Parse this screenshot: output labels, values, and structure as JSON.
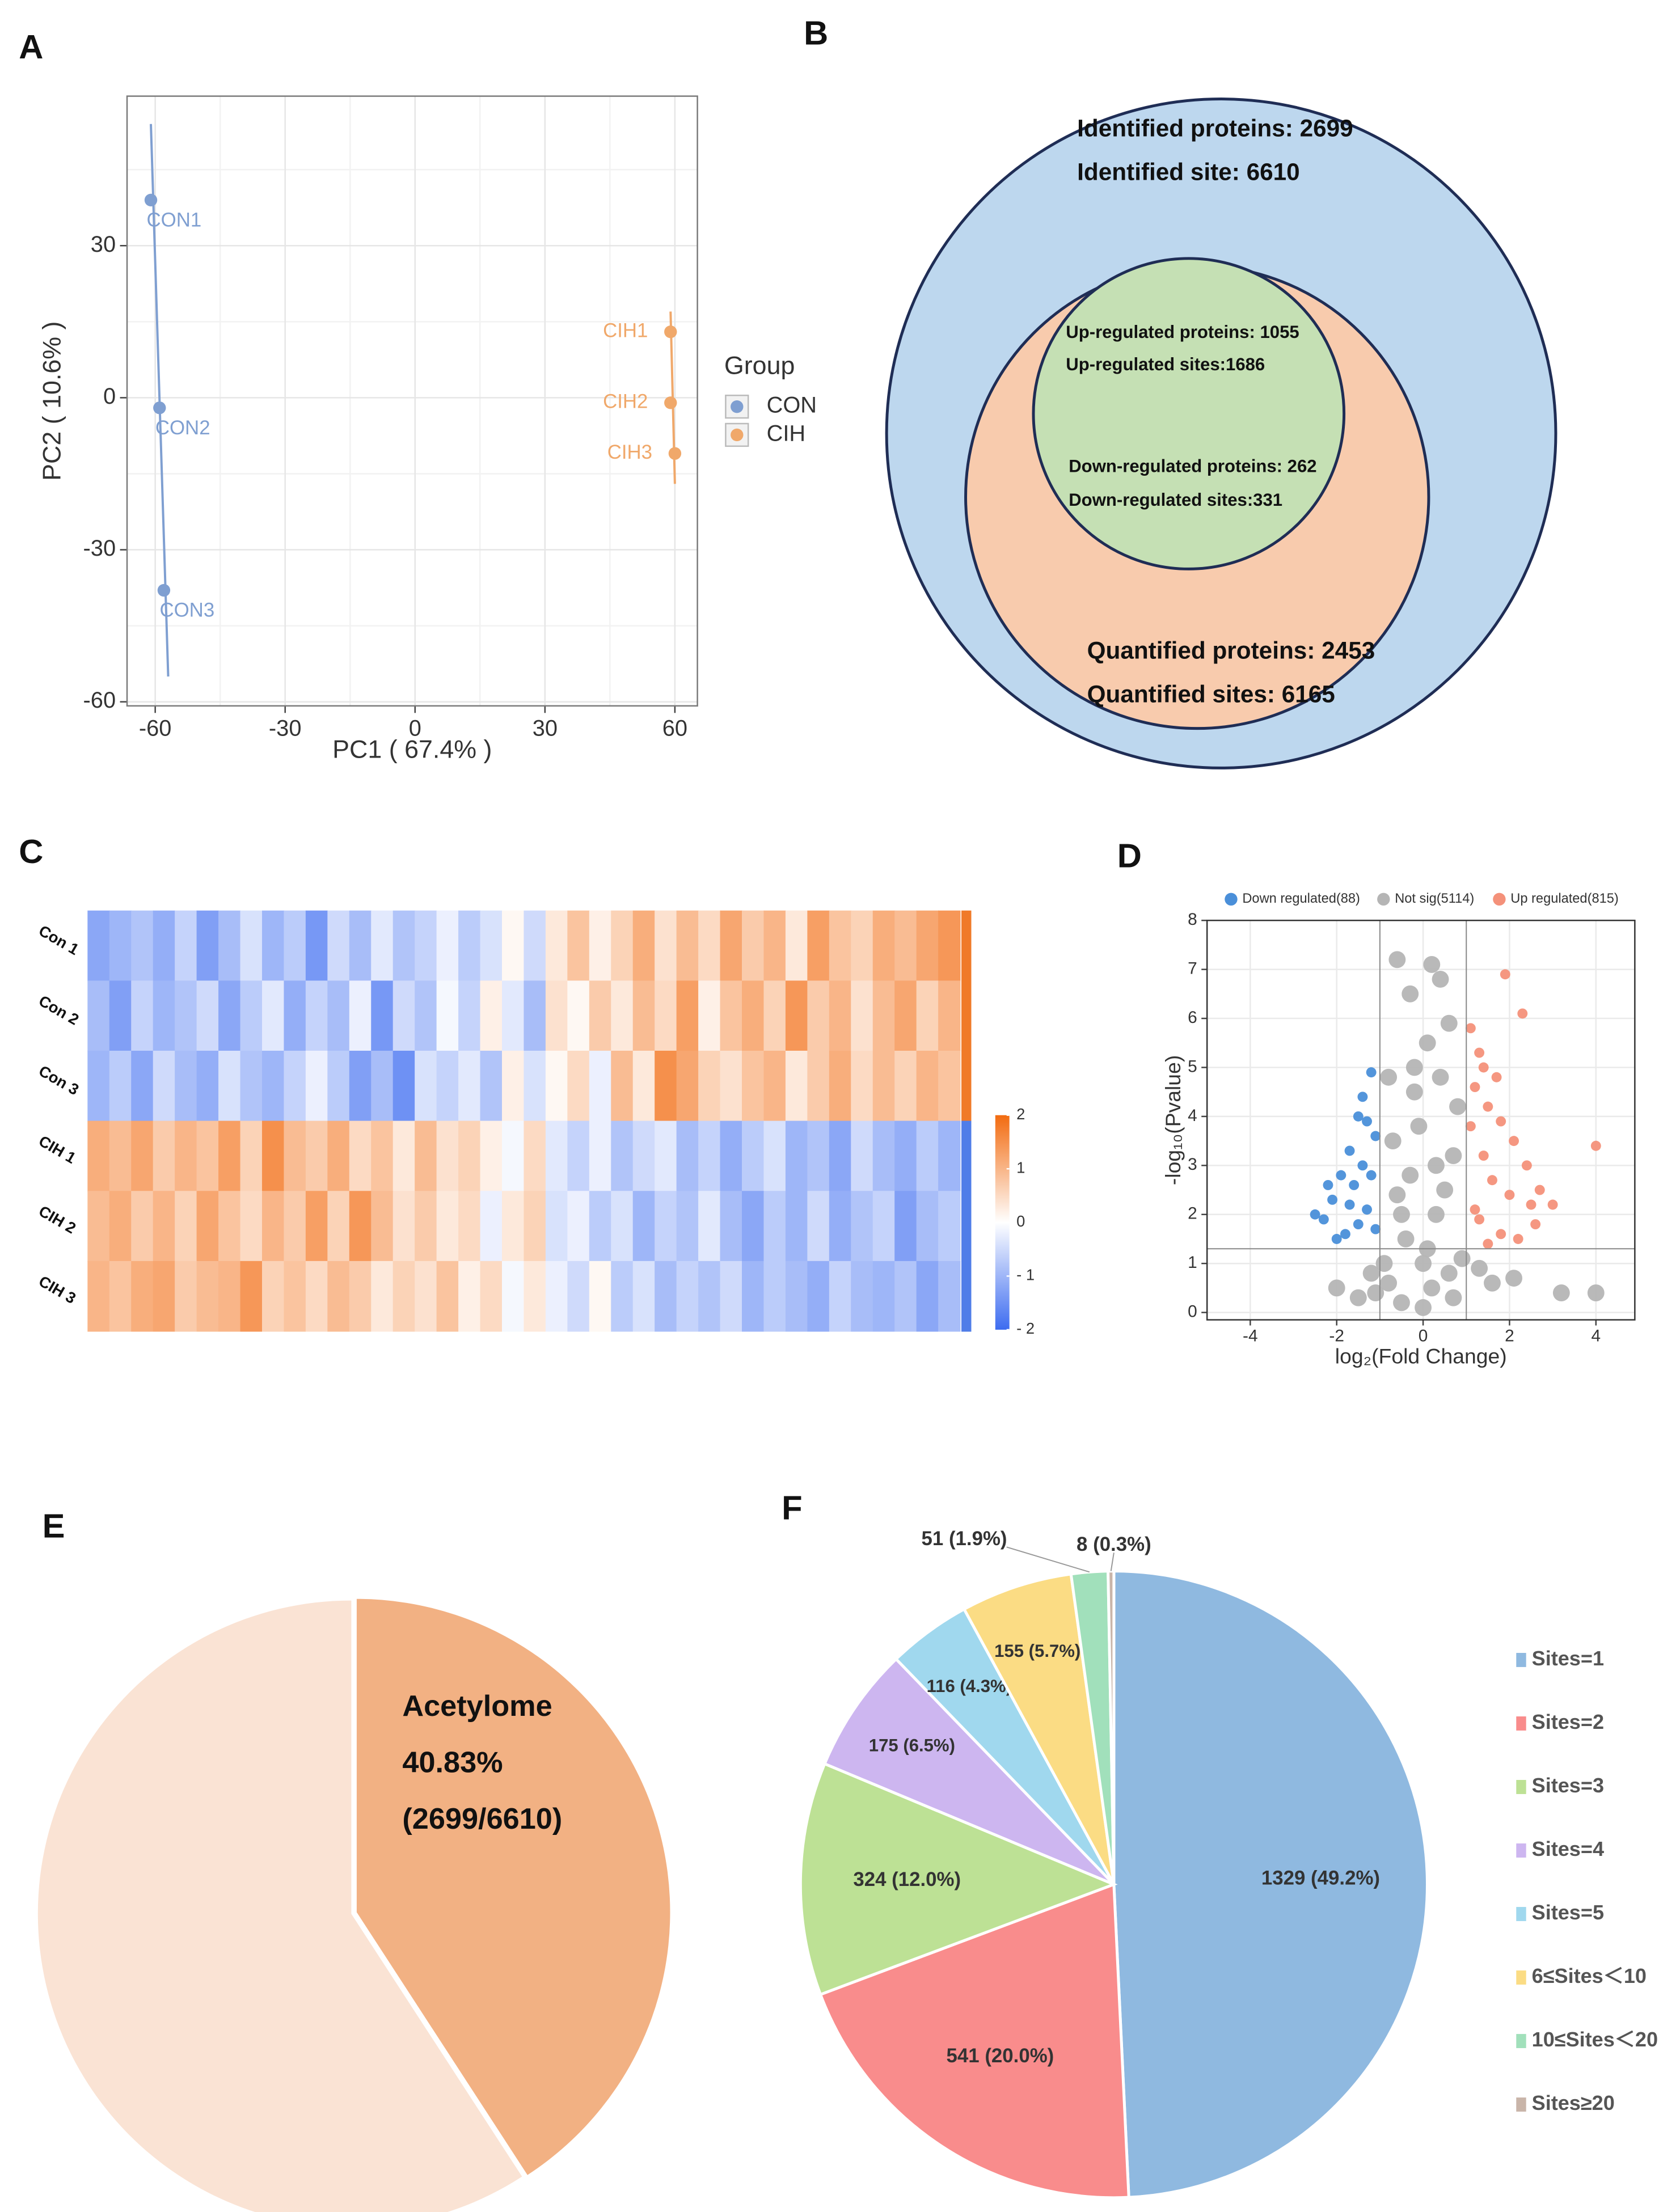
{
  "chart_data": [
    {
      "panel": "A",
      "type": "scatter",
      "xlabel": "PC1 ( 67.4% )",
      "ylabel": "PC2 ( 10.6% )",
      "xlim": [
        -66.5,
        65.2
      ],
      "ylim": [
        -60.8,
        59.5
      ],
      "xticks": [
        -60,
        -30,
        0,
        30,
        60
      ],
      "yticks": [
        -60,
        -30,
        0,
        30
      ],
      "xminor": [
        -45,
        -15,
        15,
        45
      ],
      "yminor": [
        -45,
        -15,
        15,
        45
      ],
      "grid": true,
      "legend_title": "Group",
      "series": [
        {
          "name": "CON",
          "color": "#7f9fd1",
          "labels": [
            "CON1",
            "CON2",
            "CON3"
          ],
          "x": [
            -61,
            -59,
            -58
          ],
          "values": [
            39,
            -2,
            -38
          ],
          "line": {
            "x": [
              -61,
              -57
            ],
            "y": [
              54,
              -55
            ]
          }
        },
        {
          "name": "CIH",
          "color": "#f0a86a",
          "labels": [
            "CIH1",
            "CIH2",
            "CIH3"
          ],
          "x": [
            59,
            59,
            60
          ],
          "values": [
            13,
            -1,
            -11
          ],
          "line": {
            "x": [
              59,
              60
            ],
            "y": [
              17,
              -17
            ]
          }
        }
      ]
    },
    {
      "panel": "B",
      "type": "venn",
      "groups": [
        {
          "color": "#bdd7ee",
          "lines": [
            "Identified proteins: 2699",
            "Identified site: 6610"
          ]
        },
        {
          "color": "#f8cbad",
          "lines": [
            "Quantified proteins: 2453",
            "Quantified sites: 6165"
          ]
        },
        {
          "color": "#c5e0b4",
          "lines": [
            "Up-regulated proteins: 1055",
            "Up-regulated sites:1686",
            "Down-regulated proteins: 262",
            "Down-regulated sites:331"
          ]
        }
      ]
    },
    {
      "panel": "C",
      "type": "heatmap",
      "rows": [
        "Con 1",
        "Con 2",
        "Con 3",
        "CIH 1",
        "CIH 2",
        "CIH 3"
      ],
      "row_colors": [
        "#f07a28",
        "#f07a28",
        "#f07a28",
        "#4f7de8",
        "#4f7de8",
        "#4f7de8"
      ],
      "colors": [
        "#3d6cf0",
        "#ffffff",
        "#f26b10"
      ],
      "clim": [
        -2,
        2
      ],
      "ticks": [
        2,
        1,
        0,
        {
          "value": -1,
          "label": "- 1"
        },
        {
          "value": -2,
          "label": "- 2"
        }
      ],
      "values": [
        [
          -1.2,
          -1.0,
          -0.8,
          -1.1,
          -0.6,
          -1.3,
          -0.9,
          -0.4,
          -1.0,
          -0.7,
          -1.4,
          -0.5,
          -0.9,
          -0.3,
          -0.8,
          -0.6,
          -0.2,
          -0.7,
          -0.4,
          0.1,
          -0.5,
          0.3,
          0.8,
          0.2,
          0.6,
          1.1,
          0.4,
          0.9,
          0.5,
          1.2,
          0.7,
          1.0,
          0.3,
          1.3,
          0.8,
          0.6,
          1.1,
          0.9,
          1.2,
          1.4
        ],
        [
          -0.9,
          -1.3,
          -0.6,
          -1.0,
          -0.8,
          -0.5,
          -1.2,
          -0.7,
          -0.3,
          -1.1,
          -0.6,
          -0.9,
          -0.2,
          -1.4,
          -0.5,
          -0.8,
          -0.1,
          -0.6,
          0.2,
          -0.3,
          -0.9,
          0.4,
          0.1,
          0.7,
          0.3,
          0.9,
          0.5,
          1.3,
          0.2,
          0.8,
          1.1,
          0.6,
          1.4,
          0.7,
          1.0,
          0.4,
          0.9,
          1.2,
          0.6,
          1.0
        ],
        [
          -1.0,
          -0.7,
          -1.2,
          -0.5,
          -0.9,
          -1.1,
          -0.4,
          -0.8,
          -1.0,
          -0.6,
          -0.2,
          -0.7,
          -1.3,
          -0.9,
          -1.5,
          -0.4,
          -0.6,
          -0.3,
          -0.8,
          0.2,
          -0.4,
          0.1,
          0.5,
          -0.2,
          0.9,
          0.3,
          1.5,
          1.2,
          0.6,
          0.4,
          0.8,
          1.0,
          0.3,
          0.7,
          1.1,
          0.5,
          0.9,
          0.6,
          1.0,
          0.8
        ],
        [
          1.1,
          0.9,
          1.2,
          0.7,
          1.0,
          0.8,
          1.3,
          0.6,
          1.5,
          0.9,
          0.7,
          1.1,
          0.5,
          0.8,
          0.3,
          0.9,
          0.4,
          0.6,
          0.2,
          -0.1,
          0.5,
          -0.3,
          -0.6,
          -0.2,
          -0.8,
          -0.5,
          -0.3,
          -0.9,
          -0.6,
          -1.1,
          -0.7,
          -0.4,
          -1.0,
          -0.8,
          -1.2,
          -0.5,
          -0.9,
          -1.1,
          -0.7,
          -1.0
        ],
        [
          0.9,
          1.1,
          0.7,
          1.0,
          0.6,
          1.2,
          0.8,
          0.5,
          1.0,
          0.7,
          1.3,
          0.6,
          1.4,
          0.9,
          0.4,
          0.7,
          0.3,
          0.5,
          -0.2,
          0.3,
          0.6,
          -0.4,
          -0.2,
          -0.7,
          -0.4,
          -1.0,
          -0.6,
          -0.8,
          -0.3,
          -0.9,
          -1.2,
          -0.7,
          -1.0,
          -0.5,
          -1.1,
          -0.8,
          -0.6,
          -1.3,
          -0.9,
          -0.7
        ],
        [
          1.0,
          0.8,
          1.1,
          1.2,
          0.7,
          0.9,
          1.0,
          1.4,
          0.6,
          0.8,
          0.5,
          0.9,
          0.7,
          0.3,
          0.6,
          0.4,
          0.8,
          0.2,
          0.5,
          -0.1,
          0.3,
          -0.2,
          -0.5,
          0.1,
          -0.7,
          -0.4,
          -0.9,
          -0.6,
          -0.8,
          -0.5,
          -1.0,
          -0.7,
          -0.9,
          -1.1,
          -0.6,
          -0.9,
          -1.0,
          -0.8,
          -1.2,
          -0.9
        ]
      ]
    },
    {
      "panel": "D",
      "type": "volcano",
      "xlabel": "log₂(Fold Change)",
      "ylabel": "-log₁₀(Pvalue)",
      "xlim": [
        -5,
        4.9
      ],
      "ylim": [
        -0.15,
        8
      ],
      "xticks": [
        -4,
        -2,
        0,
        2,
        4
      ],
      "yticks": [
        0,
        1,
        2,
        3,
        4,
        5,
        6,
        7,
        8
      ],
      "grid": true,
      "thresholds": {
        "x": [
          -1,
          1
        ],
        "y": 1.3
      },
      "series": [
        {
          "name": "Down regulated(88)",
          "color": "#4a8fd9",
          "x": [
            -2.3,
            -2.1,
            -1.9,
            -1.7,
            -1.5,
            -1.4,
            -1.2,
            -1.6,
            -1.3,
            -1.8,
            -2.0,
            -1.1,
            -1.2,
            -1.5,
            -2.5,
            -1.4,
            -1.1,
            -1.7,
            -1.3,
            -2.2
          ],
          "values": [
            1.9,
            2.3,
            2.8,
            3.3,
            4.0,
            4.4,
            4.9,
            2.6,
            2.1,
            1.6,
            1.5,
            3.6,
            2.8,
            1.8,
            2.0,
            3.0,
            1.7,
            2.2,
            3.9,
            2.6
          ]
        },
        {
          "name": "Not sig(5114)",
          "color": "#b5b5b5",
          "x": [
            0,
            -0.5,
            0.3,
            -0.2,
            0.1,
            -0.3,
            -0.6,
            0.4,
            0.2,
            -0.8,
            0.7,
            -0.4,
            0.5,
            -0.7,
            0.8,
            -0.9,
            0.9,
            0,
            -1.2,
            1.3,
            2.1,
            -2.0,
            3.2,
            4.0,
            -1.5,
            0.6,
            -0.1,
            0.3,
            -0.3,
            0.1,
            0.6,
            -0.5,
            1.6,
            -1.1,
            0.4,
            -0.8,
            0.2,
            -0.2,
            0.7,
            -0.6
          ],
          "values": [
            1,
            2,
            3,
            4.5,
            5.5,
            6.5,
            7.2,
            6.8,
            0.5,
            0.6,
            0.3,
            1.5,
            2.5,
            3.5,
            4.2,
            1.0,
            1.1,
            0.1,
            0.8,
            0.9,
            0.7,
            0.5,
            0.4,
            0.4,
            0.3,
            5.9,
            3.8,
            2.0,
            2.8,
            1.3,
            0.8,
            0.2,
            0.6,
            0.4,
            4.8,
            4.8,
            7.1,
            5.0,
            3.2,
            2.4
          ]
        },
        {
          "name": "Up regulated(815)",
          "color": "#f4917a",
          "x": [
            1.1,
            1.3,
            1.2,
            1.5,
            1.8,
            2.1,
            2.4,
            2.7,
            3.0,
            4.0,
            1.9,
            2.3,
            1.4,
            1.6,
            1.2,
            1.8,
            2.2,
            1.5,
            2.6,
            1.1,
            1.7,
            2.0,
            1.3,
            2.5,
            1.4
          ],
          "values": [
            5.8,
            5.3,
            4.6,
            4.2,
            3.9,
            3.5,
            3.0,
            2.5,
            2.2,
            3.4,
            6.9,
            6.1,
            3.2,
            2.7,
            2.1,
            1.6,
            1.5,
            1.4,
            1.8,
            3.8,
            4.8,
            2.4,
            1.9,
            2.2,
            5.0
          ]
        }
      ]
    },
    {
      "panel": "E",
      "type": "pie",
      "categories": [
        "Acetylome",
        null
      ],
      "values": [
        40.83,
        59.17
      ],
      "value_labels": [
        "40.83%",
        null
      ],
      "annotation": "(2699/6610)",
      "colors": [
        "#f2b183",
        "#fae3d4"
      ]
    },
    {
      "panel": "F",
      "type": "pie",
      "categories": [
        "Sites=1",
        "Sites=2",
        "Sites=3",
        "Sites=4",
        "Sites=5",
        "6≤Sites＜10",
        "10≤Sites＜20",
        "Sites≥20"
      ],
      "values": [
        1329,
        541,
        324,
        175,
        116,
        155,
        51,
        8
      ],
      "value_labels": [
        "1329 (49.2%)",
        "541 (20.0%)",
        "324 (12.0%)",
        "175 (6.5%)",
        "116 (4.3%)",
        "155 (5.7%)",
        "51 (1.9%)",
        "8 (0.3%)"
      ],
      "colors": [
        "#8fb9e0",
        "#f98c8c",
        "#bde195",
        "#cdb6f0",
        "#a0d8ee",
        "#fbdc84",
        "#a1e0bb",
        "#c9b5a9"
      ],
      "legend": "right"
    }
  ]
}
